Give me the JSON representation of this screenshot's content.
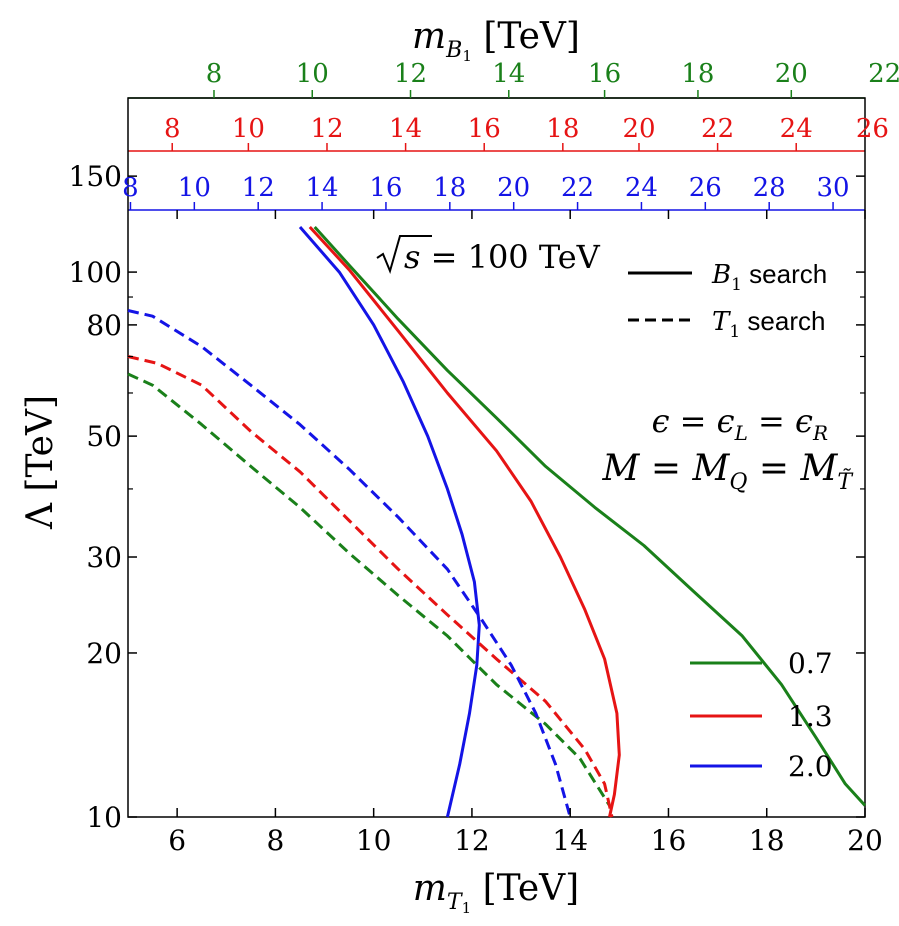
{
  "chart_data": {
    "type": "line",
    "xlabel": "m_T1 [TeV]",
    "ylabel": "Λ [TeV]",
    "top_axis_label": "m_B1 [TeV]",
    "xlim": [
      5,
      20
    ],
    "ylim": [
      10,
      130
    ],
    "yscale": "log",
    "x_ticks": [
      "6",
      "8",
      "10",
      "12",
      "14",
      "16",
      "18",
      "20"
    ],
    "y_ticks": [
      {
        "value": 10,
        "label": "10"
      },
      {
        "value": 20,
        "label": "20"
      },
      {
        "value": 30,
        "label": "30"
      },
      {
        "value": 50,
        "label": "50"
      },
      {
        "value": 80,
        "label": "80"
      },
      {
        "value": 100,
        "label": "100"
      },
      {
        "value": 150,
        "label": "150"
      }
    ],
    "top_axes": [
      {
        "color": "#1a801a",
        "ticks": [
          {
            "x": 6.75,
            "label": "8"
          },
          {
            "x": 8.75,
            "label": "10"
          },
          {
            "x": 10.75,
            "label": "12"
          },
          {
            "x": 12.75,
            "label": "14"
          },
          {
            "x": 14.7,
            "label": "16"
          },
          {
            "x": 16.6,
            "label": "18"
          },
          {
            "x": 18.5,
            "label": "20"
          },
          {
            "x": 20.4,
            "label": "22"
          }
        ]
      },
      {
        "color": "#e61414",
        "ticks": [
          {
            "x": 5.9,
            "label": "8"
          },
          {
            "x": 7.45,
            "label": "10"
          },
          {
            "x": 9.05,
            "label": "12"
          },
          {
            "x": 10.65,
            "label": "14"
          },
          {
            "x": 12.25,
            "label": "16"
          },
          {
            "x": 13.85,
            "label": "18"
          },
          {
            "x": 15.4,
            "label": "20"
          },
          {
            "x": 17.0,
            "label": "22"
          },
          {
            "x": 18.6,
            "label": "24"
          },
          {
            "x": 20.15,
            "label": "26"
          }
        ]
      },
      {
        "color": "#1414e6",
        "ticks": [
          {
            "x": 5.05,
            "label": "8"
          },
          {
            "x": 6.35,
            "label": "10"
          },
          {
            "x": 7.65,
            "label": "12"
          },
          {
            "x": 8.95,
            "label": "14"
          },
          {
            "x": 10.25,
            "label": "16"
          },
          {
            "x": 11.55,
            "label": "18"
          },
          {
            "x": 12.85,
            "label": "20"
          },
          {
            "x": 14.15,
            "label": "22"
          },
          {
            "x": 15.45,
            "label": "24"
          },
          {
            "x": 16.75,
            "label": "26"
          },
          {
            "x": 18.05,
            "label": "28"
          },
          {
            "x": 19.35,
            "label": "30"
          }
        ]
      }
    ],
    "annotations": {
      "energy": "√s = 100 TeV",
      "eps_relation": "ε = ε_L = ε_R",
      "mass_relation": "M = M_Q = M_T̃"
    },
    "style_legend": [
      {
        "label": "B_1 search",
        "dash": "solid"
      },
      {
        "label": "T_1 search",
        "dash": "dashed"
      }
    ],
    "color_legend": [
      {
        "label": "0.7",
        "color": "#1a801a"
      },
      {
        "label": "1.3",
        "color": "#e61414"
      },
      {
        "label": "2.0",
        "color": "#1414e6"
      }
    ],
    "series": [
      {
        "name": "0.7",
        "search": "B_1",
        "dash": "solid",
        "color": "#1a801a",
        "points": [
          [
            8.8,
            121
          ],
          [
            9.5,
            103
          ],
          [
            10.5,
            82
          ],
          [
            11.5,
            66
          ],
          [
            12.5,
            54
          ],
          [
            13.5,
            44
          ],
          [
            14.5,
            37
          ],
          [
            15.5,
            31.5
          ],
          [
            16.5,
            26
          ],
          [
            17.5,
            21.5
          ],
          [
            18.3,
            17.5
          ],
          [
            19,
            14
          ],
          [
            19.6,
            11.5
          ],
          [
            20,
            10.5
          ]
        ]
      },
      {
        "name": "1.3",
        "search": "B_1",
        "dash": "solid",
        "color": "#e61414",
        "points": [
          [
            8.7,
            121
          ],
          [
            9.5,
            101
          ],
          [
            10.5,
            78
          ],
          [
            11.5,
            60
          ],
          [
            12.5,
            47
          ],
          [
            13.2,
            38
          ],
          [
            13.8,
            30
          ],
          [
            14.3,
            24
          ],
          [
            14.7,
            19.5
          ],
          [
            14.95,
            15.5
          ],
          [
            15.0,
            13
          ],
          [
            14.9,
            11
          ],
          [
            14.8,
            10
          ]
        ]
      },
      {
        "name": "2.0",
        "search": "B_1",
        "dash": "solid",
        "color": "#1414e6",
        "points": [
          [
            8.5,
            121
          ],
          [
            9.3,
            100
          ],
          [
            10.0,
            80
          ],
          [
            10.6,
            63
          ],
          [
            11.1,
            50
          ],
          [
            11.5,
            40
          ],
          [
            11.8,
            33
          ],
          [
            12.05,
            27
          ],
          [
            12.15,
            22.5
          ],
          [
            12.1,
            19
          ],
          [
            11.95,
            15.5
          ],
          [
            11.75,
            12.5
          ],
          [
            11.5,
            10
          ]
        ]
      },
      {
        "name": "0.7",
        "search": "T_1",
        "dash": "dashed",
        "color": "#1a801a",
        "points": [
          [
            5.0,
            65
          ],
          [
            5.5,
            62
          ],
          [
            6.5,
            52.5
          ],
          [
            7.5,
            44
          ],
          [
            8.5,
            37
          ],
          [
            9.5,
            30.5
          ],
          [
            10.5,
            25.5
          ],
          [
            11.5,
            21.5
          ],
          [
            12.5,
            17.5
          ],
          [
            13.5,
            14.8
          ],
          [
            14.2,
            12.8
          ],
          [
            14.8,
            10.5
          ]
        ]
      },
      {
        "name": "1.3",
        "search": "T_1",
        "dash": "dashed",
        "color": "#e61414",
        "points": [
          [
            5.0,
            70
          ],
          [
            5.6,
            68
          ],
          [
            6.5,
            62
          ],
          [
            7.5,
            51
          ],
          [
            8.5,
            43
          ],
          [
            9.5,
            35
          ],
          [
            10.5,
            28.5
          ],
          [
            11.5,
            23.5
          ],
          [
            12.5,
            19.5
          ],
          [
            13.5,
            16.3
          ],
          [
            14.3,
            13.3
          ],
          [
            14.7,
            11.5
          ],
          [
            14.85,
            10
          ]
        ]
      },
      {
        "name": "2.0",
        "search": "T_1",
        "dash": "dashed",
        "color": "#1414e6",
        "points": [
          [
            5.0,
            85
          ],
          [
            5.5,
            83
          ],
          [
            6.5,
            73
          ],
          [
            7.5,
            62
          ],
          [
            8.5,
            52.5
          ],
          [
            9.5,
            43.5
          ],
          [
            10.5,
            35.5
          ],
          [
            11.5,
            28.5
          ],
          [
            12.2,
            23
          ],
          [
            12.8,
            19
          ],
          [
            13.3,
            15.5
          ],
          [
            13.7,
            12.5
          ],
          [
            14.0,
            10
          ]
        ]
      }
    ]
  }
}
